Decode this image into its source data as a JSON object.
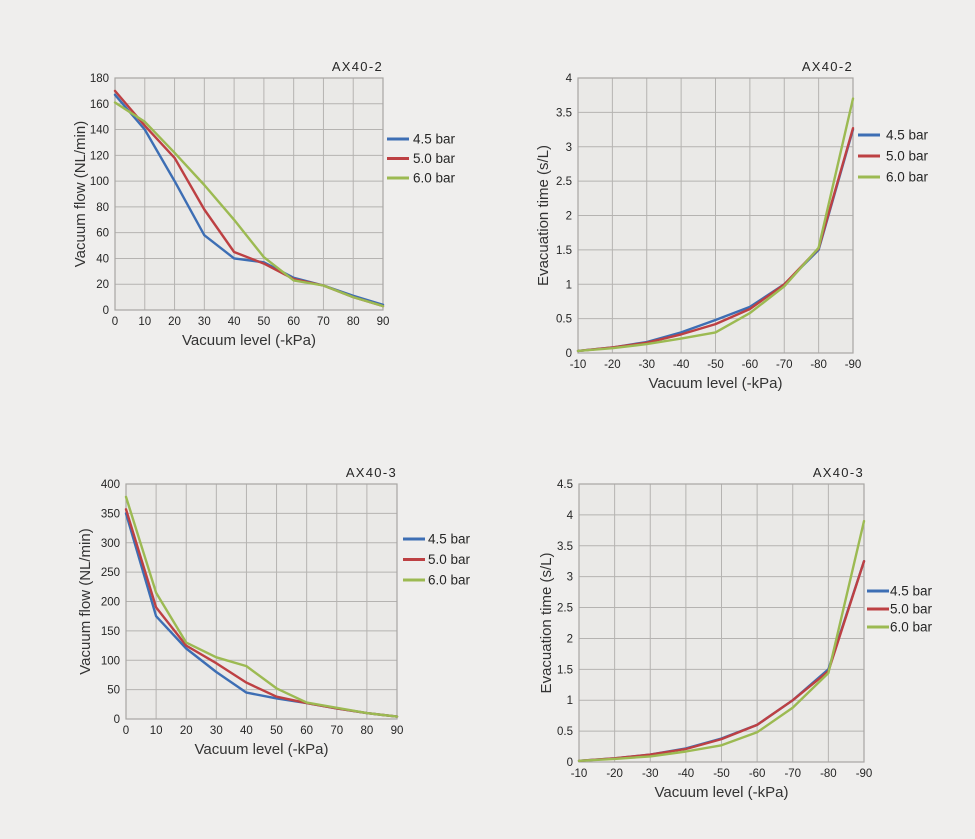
{
  "page": {
    "background": "#efeeed",
    "plot_background": "#eae9e7",
    "grid_color": "#b5b3b1",
    "frame_color": "#a8a6a4",
    "text_color": "#262626"
  },
  "chart_data": [
    {
      "id": "ax40-2-flow",
      "type": "line",
      "title": "AX40-2",
      "xlabel": "Vacuum level (-kPa)",
      "ylabel": "Vacuum flow (NL/min)",
      "x": [
        0,
        10,
        20,
        30,
        40,
        50,
        60,
        70,
        80,
        90
      ],
      "xlim": [
        0,
        90
      ],
      "ylim": [
        0,
        180
      ],
      "yticks": [
        0,
        20,
        40,
        60,
        80,
        100,
        120,
        140,
        160,
        180
      ],
      "grid": true,
      "legend_position": "right",
      "series": [
        {
          "name": "4.5 bar",
          "color": "#3d6eb4",
          "values": [
            167,
            140,
            100,
            58,
            40,
            37,
            25,
            19,
            11,
            4
          ]
        },
        {
          "name": "5.0 bar",
          "color": "#bd4043",
          "values": [
            170,
            143,
            118,
            78,
            45,
            36,
            24,
            19,
            10,
            3
          ]
        },
        {
          "name": "6.0 bar",
          "color": "#9cba52",
          "values": [
            161,
            146,
            122,
            97,
            70,
            41,
            23,
            19,
            10,
            3
          ]
        }
      ]
    },
    {
      "id": "ax40-2-time",
      "type": "line",
      "title": "AX40-2",
      "xlabel": "Vacuum level (-kPa)",
      "ylabel": "Evacuation time (s/L)",
      "x": [
        -10,
        -20,
        -30,
        -40,
        -50,
        -60,
        -70,
        -80,
        -90
      ],
      "xlim": [
        -10,
        -90
      ],
      "ylim": [
        0,
        4
      ],
      "yticks": [
        0,
        0.5,
        1,
        1.5,
        2,
        2.5,
        3,
        3.5,
        4
      ],
      "grid": true,
      "legend_position": "right",
      "series": [
        {
          "name": "4.5 bar",
          "color": "#3d6eb4",
          "values": [
            0.03,
            0.08,
            0.16,
            0.3,
            0.48,
            0.67,
            1.0,
            1.5,
            3.25
          ]
        },
        {
          "name": "5.0 bar",
          "color": "#bd4043",
          "values": [
            0.03,
            0.08,
            0.15,
            0.27,
            0.42,
            0.64,
            1.0,
            1.52,
            3.27
          ]
        },
        {
          "name": "6.0 bar",
          "color": "#9cba52",
          "values": [
            0.03,
            0.07,
            0.13,
            0.21,
            0.3,
            0.58,
            0.97,
            1.53,
            3.7
          ]
        }
      ]
    },
    {
      "id": "ax40-3-flow",
      "type": "line",
      "title": "AX40-3",
      "xlabel": "Vacuum level (-kPa)",
      "ylabel": "Vacuum flow (NL/min)",
      "x": [
        0,
        10,
        20,
        30,
        40,
        50,
        60,
        70,
        80,
        90
      ],
      "xlim": [
        0,
        90
      ],
      "ylim": [
        0,
        400
      ],
      "yticks": [
        0,
        50,
        100,
        150,
        200,
        250,
        300,
        350,
        400
      ],
      "grid": true,
      "legend_position": "right",
      "series": [
        {
          "name": "4.5 bar",
          "color": "#3d6eb4",
          "values": [
            350,
            175,
            120,
            80,
            45,
            35,
            27,
            18,
            10,
            4
          ]
        },
        {
          "name": "5.0 bar",
          "color": "#bd4043",
          "values": [
            357,
            190,
            125,
            95,
            62,
            38,
            27,
            18,
            10,
            4
          ]
        },
        {
          "name": "6.0 bar",
          "color": "#9cba52",
          "values": [
            378,
            215,
            130,
            105,
            90,
            52,
            28,
            19,
            10,
            4
          ]
        }
      ]
    },
    {
      "id": "ax40-3-time",
      "type": "line",
      "title": "AX40-3",
      "xlabel": "Vacuum level (-kPa)",
      "ylabel": "Evacuation time (s/L)",
      "x": [
        -10,
        -20,
        -30,
        -40,
        -50,
        -60,
        -70,
        -80,
        -90
      ],
      "xlim": [
        -10,
        -90
      ],
      "ylim": [
        0,
        4.5
      ],
      "yticks": [
        0,
        0.5,
        1,
        1.5,
        2,
        2.5,
        3,
        3.5,
        4,
        4.5
      ],
      "grid": true,
      "legend_position": "right",
      "series": [
        {
          "name": "4.5 bar",
          "color": "#3d6eb4",
          "values": [
            0.02,
            0.06,
            0.12,
            0.22,
            0.38,
            0.6,
            1.0,
            1.5,
            3.25
          ]
        },
        {
          "name": "5.0 bar",
          "color": "#bd4043",
          "values": [
            0.02,
            0.06,
            0.12,
            0.21,
            0.37,
            0.6,
            1.0,
            1.47,
            3.25
          ]
        },
        {
          "name": "6.0 bar",
          "color": "#9cba52",
          "values": [
            0.02,
            0.05,
            0.09,
            0.17,
            0.27,
            0.48,
            0.88,
            1.44,
            3.9
          ]
        }
      ]
    }
  ]
}
